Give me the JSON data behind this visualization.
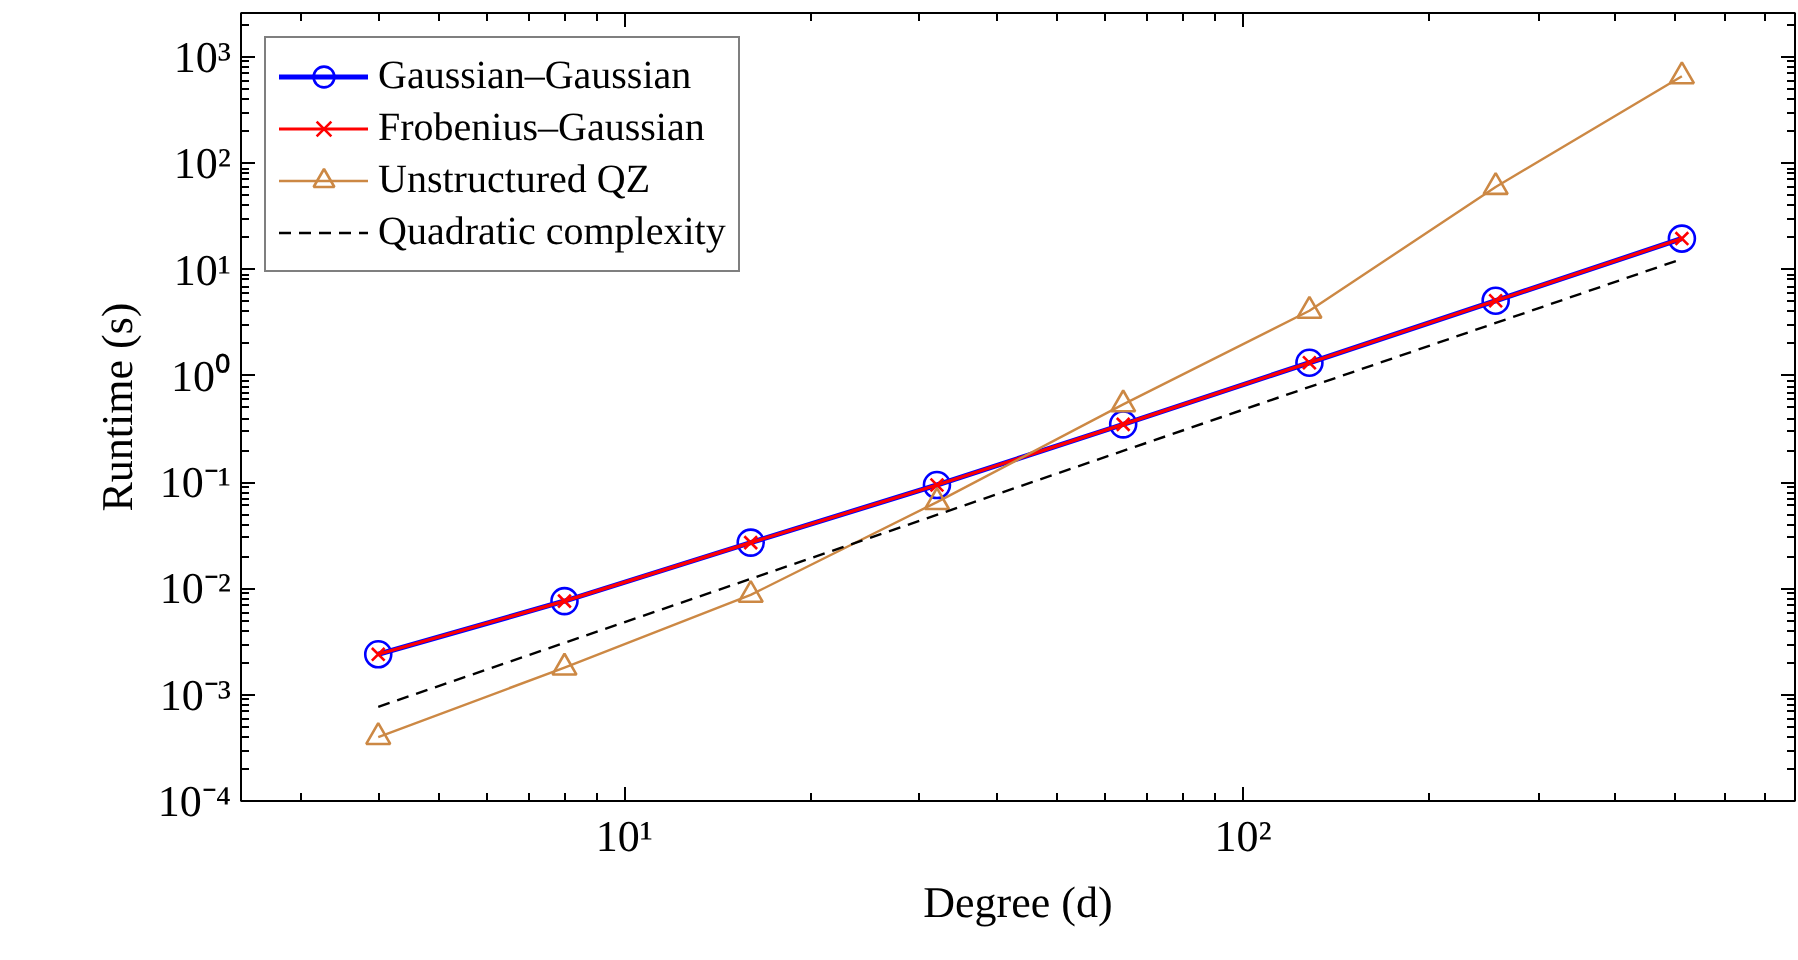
{
  "chart_data": {
    "type": "line",
    "xlabel": "Degree (d)",
    "ylabel": "Runtime (s)",
    "log": "xy",
    "grid": false,
    "legend": "top left",
    "x": [
      4,
      8,
      16,
      32,
      64,
      128,
      256,
      512
    ],
    "xlim": [
      2.4,
      780
    ],
    "ylim": [
      0.0001,
      2600
    ],
    "xticks": [
      {
        "value": 10,
        "label": "10¹"
      },
      {
        "value": 100,
        "label": "10²"
      }
    ],
    "yticks": [
      {
        "value": 0.0001,
        "label": "10⁻⁴"
      },
      {
        "value": 0.001,
        "label": "10⁻³"
      },
      {
        "value": 0.01,
        "label": "10⁻²"
      },
      {
        "value": 0.1,
        "label": "10⁻¹"
      },
      {
        "value": 1,
        "label": "10⁰"
      },
      {
        "value": 10,
        "label": "10¹"
      },
      {
        "value": 100,
        "label": "10²"
      },
      {
        "value": 1000,
        "label": "10³"
      }
    ],
    "series": [
      {
        "name": "Gaussian–Gaussian",
        "color": "#0000ff",
        "marker": "circle",
        "values": [
          0.0024,
          0.0076,
          0.027,
          0.094,
          0.35,
          1.33,
          5.1,
          19.6
        ]
      },
      {
        "name": "Frobenius–Gaussian",
        "color": "#ff0000",
        "marker": "cross",
        "values": [
          0.0024,
          0.0076,
          0.027,
          0.094,
          0.35,
          1.33,
          5.1,
          19.6
        ]
      },
      {
        "name": "Unstructured QZ",
        "color": "#cc8844",
        "marker": "triangle",
        "values": [
          0.0004,
          0.0018,
          0.0087,
          0.065,
          0.54,
          4.1,
          60,
          660
        ]
      },
      {
        "name": "Quadratic complexity",
        "color": "#000000",
        "marker": "none",
        "line_style": "dashed",
        "x": [
          4,
          512
        ],
        "values": [
          0.00077,
          12.6
        ]
      }
    ]
  }
}
